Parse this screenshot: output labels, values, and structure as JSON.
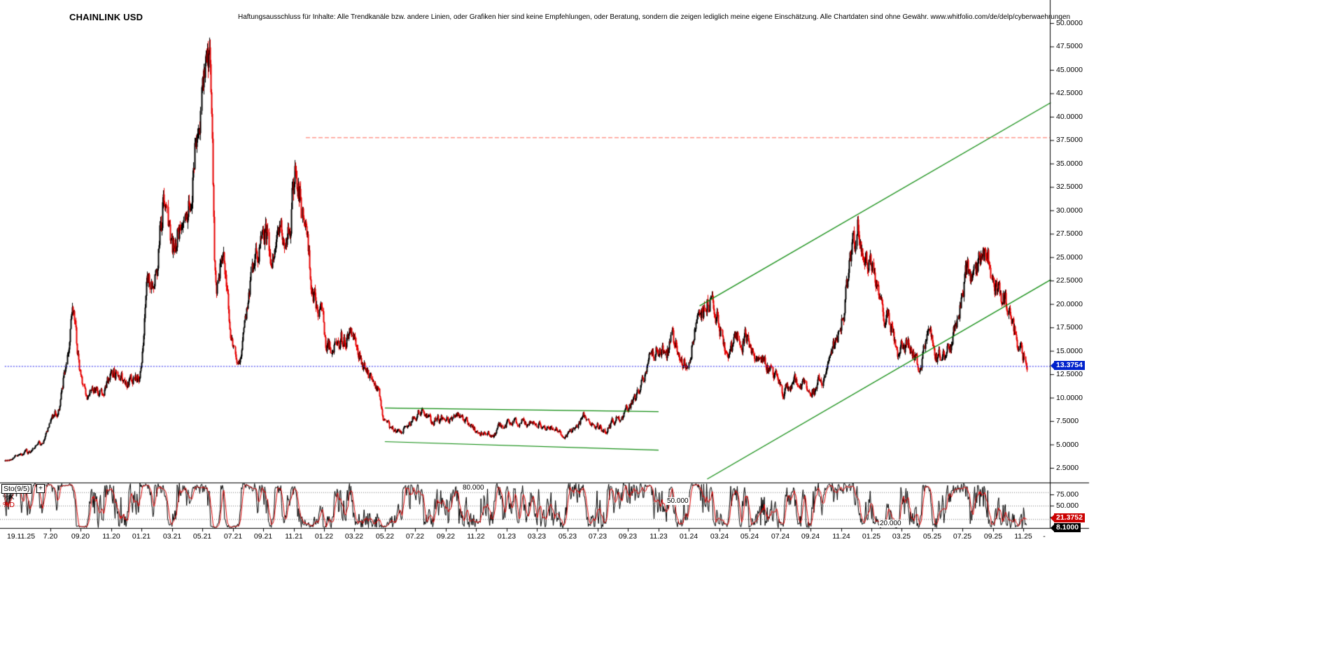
{
  "header": {
    "title": "CHAINLINK USD",
    "disclaimer": "Haftungsausschluss für Inhalte: Alle Trendkanäle bzw. andere Linien, oder Grafiken hier sind keine Empfehlungen, oder Beratung, sondern die zeigen lediglich meine eigene Einschätzung. Alle Chartdaten sind ohne Gewähr.  www.whitfolio.com/de/delp/cyberwaehrungen"
  },
  "chart_data": {
    "type": "candlestick",
    "symbol": "CHAINLINK USD",
    "ylim": [
      0.9,
      52.5
    ],
    "y_axis": {
      "tick_values": [
        50,
        47.5,
        45,
        42.5,
        40,
        37.5,
        35,
        32.5,
        30,
        27.5,
        25,
        22.5,
        20,
        17.5,
        15,
        12.5,
        10,
        7.5,
        5,
        2.5
      ],
      "tick_labels": [
        "50.0000",
        "47.5000",
        "45.0000",
        "42.5000",
        "40.0000",
        "37.5000",
        "35.0000",
        "32.5000",
        "30.0000",
        "27.5000",
        "25.0000",
        "22.5000",
        "20.0000",
        "17.5000",
        "15.0000",
        "12.5000",
        "10.0000",
        "7.5000",
        "5.0000",
        "2.5000"
      ]
    },
    "x_axis": {
      "labels": [
        "19.11.25",
        "7.20",
        "09.20",
        "11.20",
        "01.21",
        "03.21",
        "05.21",
        "07.21",
        "09.21",
        "11.21",
        "01.22",
        "03.22",
        "05.22",
        "07.22",
        "09.22",
        "11.22",
        "01.23",
        "03.23",
        "05.23",
        "07.23",
        "09.23",
        "11.23",
        "01.24",
        "03.24",
        "05.24",
        "07.24",
        "09.24",
        "11.24",
        "01.25",
        "03.25",
        "05.25",
        "07.25",
        "09.25",
        "11.25",
        "-"
      ]
    },
    "current_price": {
      "label": "13.3754",
      "value": 13.3754,
      "color": "#0022cc"
    },
    "candle_colors": {
      "up": "#000000",
      "down": "#e60000"
    },
    "price_path": [
      [
        0,
        3.2
      ],
      [
        0.8,
        3.8
      ],
      [
        1.6,
        4.2
      ],
      [
        2.4,
        5.2
      ],
      [
        3.0,
        7.6
      ],
      [
        3.6,
        9.4
      ],
      [
        4.2,
        17.5
      ],
      [
        4.45,
        19.5
      ],
      [
        4.8,
        13.0
      ],
      [
        5.2,
        9.5
      ],
      [
        5.7,
        10.8
      ],
      [
        6.3,
        10.2
      ],
      [
        7.0,
        13.2
      ],
      [
        7.6,
        12.2
      ],
      [
        8.3,
        11.4
      ],
      [
        8.8,
        13.0
      ],
      [
        9.35,
        23.0
      ],
      [
        9.8,
        21.5
      ],
      [
        10.4,
        33.0
      ],
      [
        10.8,
        25.0
      ],
      [
        11.4,
        28.5
      ],
      [
        12.0,
        31.5
      ],
      [
        12.5,
        38.0
      ],
      [
        13.0,
        44.5
      ],
      [
        13.3,
        51.3
      ],
      [
        13.6,
        33.0
      ],
      [
        13.8,
        18.5
      ],
      [
        14.1,
        26.0
      ],
      [
        14.5,
        21.5
      ],
      [
        14.9,
        16.0
      ],
      [
        15.35,
        13.8
      ],
      [
        15.85,
        19.5
      ],
      [
        16.5,
        26.0
      ],
      [
        17.05,
        28.5
      ],
      [
        17.45,
        24.0
      ],
      [
        17.9,
        26.0
      ],
      [
        18.5,
        27.5
      ],
      [
        19.15,
        36.0
      ],
      [
        19.6,
        27.0
      ],
      [
        20.1,
        21.0
      ],
      [
        20.6,
        19.5
      ],
      [
        21.1,
        15.0
      ],
      [
        21.6,
        15.2
      ],
      [
        22.2,
        16.5
      ],
      [
        22.7,
        16.8
      ],
      [
        23.3,
        14.0
      ],
      [
        23.9,
        12.0
      ],
      [
        24.5,
        10.5
      ],
      [
        24.85,
        7.2
      ],
      [
        25.3,
        6.3
      ],
      [
        26.0,
        6.6
      ],
      [
        26.8,
        7.8
      ],
      [
        27.4,
        8.9
      ],
      [
        28.0,
        7.1
      ],
      [
        28.7,
        7.9
      ],
      [
        29.4,
        7.4
      ],
      [
        30.2,
        7.9
      ],
      [
        31.0,
        6.1
      ],
      [
        31.8,
        5.9
      ],
      [
        32.6,
        7.0
      ],
      [
        33.3,
        7.3
      ],
      [
        34.0,
        7.5
      ],
      [
        34.7,
        7.0
      ],
      [
        35.4,
        7.2
      ],
      [
        36.1,
        6.4
      ],
      [
        36.8,
        6.0
      ],
      [
        37.4,
        6.6
      ],
      [
        38.1,
        8.1
      ],
      [
        38.7,
        7.4
      ],
      [
        39.3,
        6.2
      ],
      [
        40.0,
        7.5
      ],
      [
        40.8,
        8.6
      ],
      [
        41.4,
        9.6
      ],
      [
        42.0,
        12.8
      ],
      [
        42.6,
        15.2
      ],
      [
        43.2,
        14.3
      ],
      [
        43.8,
        16.0
      ],
      [
        44.3,
        14.6
      ],
      [
        44.8,
        13.4
      ],
      [
        45.4,
        19.0
      ],
      [
        46.0,
        20.3
      ],
      [
        46.35,
        21.8
      ],
      [
        46.9,
        17.5
      ],
      [
        47.5,
        14.2
      ],
      [
        48.2,
        17.2
      ],
      [
        48.9,
        15.8
      ],
      [
        49.6,
        13.8
      ],
      [
        50.3,
        13.0
      ],
      [
        51.1,
        10.2
      ],
      [
        51.7,
        11.6
      ],
      [
        52.4,
        11.2
      ],
      [
        53.2,
        10.8
      ],
      [
        53.9,
        12.4
      ],
      [
        54.6,
        15.5
      ],
      [
        55.3,
        22.0
      ],
      [
        56.1,
        29.5
      ],
      [
        56.5,
        24.0
      ],
      [
        56.9,
        26.5
      ],
      [
        57.5,
        20.0
      ],
      [
        58.1,
        17.8
      ],
      [
        58.7,
        14.8
      ],
      [
        59.4,
        15.8
      ],
      [
        60.0,
        13.0
      ],
      [
        60.6,
        16.4
      ],
      [
        61.3,
        13.8
      ],
      [
        61.9,
        14.6
      ],
      [
        62.6,
        19.2
      ],
      [
        63.2,
        24.0
      ],
      [
        63.7,
        22.6
      ],
      [
        64.3,
        26.5
      ],
      [
        64.9,
        23.0
      ],
      [
        65.5,
        21.5
      ],
      [
        66.1,
        18.0
      ],
      [
        66.7,
        15.3
      ],
      [
        67.2,
        13.37
      ]
    ],
    "annotations": {
      "horizontal_lines": [
        {
          "name": "resistance-line",
          "value": 37.8,
          "from_month": 19.8,
          "to_month": 68.74,
          "color": "#ff6655",
          "dash": "dashed"
        },
        {
          "name": "current-price-line",
          "value": 13.3754,
          "from_month": 0,
          "to_month": 68.74,
          "color": "#2222ee",
          "dash": "dotted"
        }
      ],
      "trendlines": [
        {
          "name": "channel-top",
          "m1": 25.0,
          "p1": 8.9,
          "m2": 43.0,
          "p2": 8.5,
          "color": "#0b8a0b"
        },
        {
          "name": "channel-bottom",
          "m1": 25.0,
          "p1": 5.3,
          "m2": 43.0,
          "p2": 4.4,
          "color": "#0b8a0b"
        },
        {
          "name": "ascending-channel-top",
          "m1": 45.7,
          "p1": 19.8,
          "m2": 68.8,
          "p2": 41.5,
          "color": "#0b8a0b"
        },
        {
          "name": "ascending-channel-bottom",
          "m1": 46.2,
          "p1": 1.3,
          "m2": 68.8,
          "p2": 22.6,
          "color": "#0b8a0b"
        }
      ]
    },
    "stochastic": {
      "label": "Sto(9/5)",
      "expand_label": "+",
      "k_label": "%K",
      "d_label": "%D",
      "k_color": "#000000",
      "d_color": "#dd0000",
      "levels": [
        80,
        50,
        20
      ],
      "inline_labels": [
        {
          "label": "80.000",
          "level": 80,
          "x": 660
        },
        {
          "label": "50.000",
          "level": 50,
          "x": 952
        },
        {
          "label": "20.000",
          "level": 20,
          "x": 1256
        }
      ],
      "scale_labels": [
        {
          "label": "75.000",
          "value": 75
        },
        {
          "label": "50.000",
          "value": 50
        },
        {
          "label": "25.000",
          "value": 25
        }
      ],
      "d_value_label": "21.3752",
      "d_value": 21.3752,
      "k_value_label": "8.1000",
      "k_value": 8.1
    }
  }
}
